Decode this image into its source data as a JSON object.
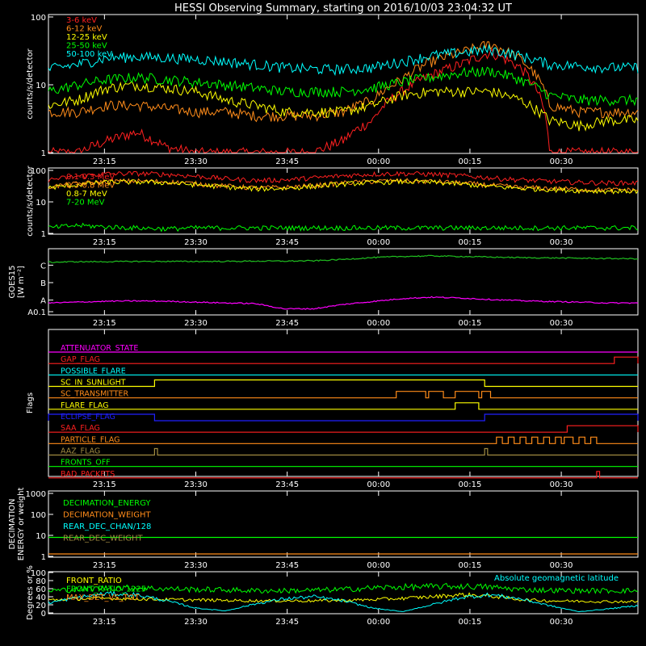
{
  "title": "HESSI Observing Summary, starting on 2016/10/03 23:04:32 UT",
  "time_ticks": [
    "23:15",
    "23:30",
    "23:45",
    "00:00",
    "00:15",
    "00:30"
  ],
  "colors": {
    "red": "#ff2020",
    "orange": "#ff8c1a",
    "yellow": "#ffff00",
    "green": "#00ff00",
    "cyan": "#00ffff",
    "magenta": "#ff00ff",
    "blue": "#2020ff",
    "darkgreen": "#20c020",
    "olive": "#a08a40"
  },
  "chart_data": [
    {
      "type": "line",
      "ylabel": "counts/s/detector",
      "scale": "log",
      "ylim": [
        1,
        100
      ],
      "y_ticks": [
        "1",
        "10",
        "100"
      ],
      "series": [
        {
          "name": "3-6 keV",
          "color": "#ff2020",
          "level_values": [
            1,
            1,
            1.5,
            2,
            1.2,
            1,
            1,
            1,
            1,
            1,
            1.5,
            3,
            8,
            14,
            20,
            30,
            18,
            1,
            1,
            1,
            1
          ]
        },
        {
          "name": "6-12 keV",
          "color": "#ff8c1a",
          "level_values": [
            4,
            4,
            5,
            5,
            4.5,
            4,
            4,
            3.5,
            3.5,
            3.5,
            4,
            6,
            12,
            22,
            30,
            40,
            24,
            5,
            4,
            4,
            4
          ]
        },
        {
          "name": "12-25 keV",
          "color": "#ffff00",
          "level_values": [
            5,
            6,
            9,
            10,
            9,
            8,
            6,
            5,
            4,
            4,
            4,
            5,
            7,
            8,
            8,
            8,
            6,
            3,
            2.5,
            3,
            3
          ]
        },
        {
          "name": "25-50 keV",
          "color": "#00ff00",
          "level_values": [
            8,
            10,
            12,
            13,
            12,
            11,
            10,
            9,
            8,
            8,
            8,
            9,
            11,
            13,
            15,
            16,
            12,
            7,
            6,
            6,
            6
          ]
        },
        {
          "name": "50-100 keV",
          "color": "#00ffff",
          "level_values": [
            17,
            20,
            25,
            26,
            25,
            24,
            22,
            20,
            18,
            17,
            17,
            18,
            22,
            27,
            30,
            33,
            27,
            20,
            19,
            18,
            18
          ]
        }
      ]
    },
    {
      "type": "line",
      "ylabel": "counts/s/detector",
      "scale": "log",
      "ylim": [
        1,
        100
      ],
      "y_ticks": [
        "1",
        "10",
        "100"
      ],
      "series": [
        {
          "name": "0.1-0.3 MeV",
          "color": "#ff2020",
          "level_values": [
            50,
            65,
            78,
            80,
            75,
            65,
            55,
            48,
            50,
            58,
            68,
            76,
            80,
            76,
            68,
            58,
            50,
            45,
            42,
            40,
            40
          ]
        },
        {
          "name": "0.3-0.8 MeV",
          "color": "#ff8c1a",
          "level_values": [
            30,
            38,
            45,
            46,
            44,
            38,
            32,
            28,
            29,
            33,
            40,
            45,
            47,
            45,
            40,
            34,
            29,
            27,
            25,
            24,
            24
          ]
        },
        {
          "name": "0.8-7 MeV",
          "color": "#ffff00",
          "level_values": [
            28,
            35,
            42,
            43,
            41,
            35,
            30,
            26,
            27,
            31,
            37,
            42,
            44,
            42,
            37,
            31,
            27,
            25,
            23,
            22,
            22
          ]
        },
        {
          "name": "7-20 MeV",
          "color": "#00ff00",
          "level_values": [
            1.5,
            1.8,
            1.6,
            1.5,
            1.4,
            1.5,
            1.5,
            1.5,
            1.5,
            1.5,
            1.5,
            1.5,
            1.5,
            1.5,
            1.5,
            1.5,
            1.5,
            1.5,
            1.5,
            1.5,
            1.5
          ]
        }
      ]
    },
    {
      "type": "line",
      "ylabel": "GOES15",
      "ylabel2": "[W m⁻²]",
      "y_ticks": [
        "A0.1",
        "A",
        "B",
        "C"
      ],
      "series": [
        {
          "name": "",
          "color": "#20c020",
          "level_values": [
            1.7,
            1.72,
            1.72,
            1.73,
            1.73,
            1.73,
            1.73,
            1.74,
            1.74,
            1.75,
            1.8,
            1.86,
            1.9,
            1.92,
            1.9,
            1.88,
            1.86,
            1.85,
            1.84,
            1.83,
            1.82
          ]
        },
        {
          "name": "",
          "color": "#ff00ff",
          "level_values": [
            0.3,
            0.33,
            0.36,
            0.37,
            0.36,
            0.33,
            0.3,
            0.28,
            0.1,
            0.1,
            0.25,
            0.35,
            0.45,
            0.5,
            0.47,
            0.42,
            0.38,
            0.35,
            0.33,
            0.3,
            0.3
          ]
        }
      ]
    },
    {
      "type": "line",
      "ylabel": "Flags",
      "series": [
        {
          "name": "ATTENUATOR_STATE",
          "color": "#ff00ff",
          "on_intervals": []
        },
        {
          "name": "GAP_FLAG",
          "color": "#ff2020",
          "on_intervals": [
            [
              0.96,
              1.0
            ]
          ]
        },
        {
          "name": "POSSIBLE_FLARE",
          "color": "#00ffff",
          "on_intervals": []
        },
        {
          "name": "SC_IN_SUNLIGHT",
          "color": "#ffff00",
          "on_intervals": [
            [
              0.18,
              0.74
            ]
          ]
        },
        {
          "name": "SC_TRANSMITTER",
          "color": "#ff8c1a",
          "on_intervals": [
            [
              0.59,
              0.64
            ],
            [
              0.645,
              0.67
            ],
            [
              0.69,
              0.73
            ],
            [
              0.735,
              0.75
            ]
          ]
        },
        {
          "name": "FLARE_FLAG",
          "color": "#ffff00",
          "on_intervals": [
            [
              0.69,
              0.73
            ]
          ]
        },
        {
          "name": "ECLIPSE_FLAG",
          "color": "#2020ff",
          "on_intervals": [
            [
              0.0,
              0.18
            ],
            [
              0.74,
              1.0
            ]
          ]
        },
        {
          "name": "SAA_FLAG",
          "color": "#ff2020",
          "on_intervals": [
            [
              0.88,
              1.0
            ]
          ]
        },
        {
          "name": "PARTICLE_FLAG",
          "color": "#ff8c1a",
          "on_intervals": [
            [
              0.76,
              0.77
            ],
            [
              0.78,
              0.79
            ],
            [
              0.8,
              0.81
            ],
            [
              0.82,
              0.83
            ],
            [
              0.84,
              0.85
            ],
            [
              0.86,
              0.87
            ],
            [
              0.875,
              0.89
            ],
            [
              0.9,
              0.91
            ],
            [
              0.92,
              0.93
            ]
          ]
        },
        {
          "name": "AAZ_FLAG",
          "color": "#a08a40",
          "on_intervals": [
            [
              0.18,
              0.185
            ],
            [
              0.74,
              0.745
            ]
          ]
        },
        {
          "name": "FRONTS_OFF",
          "color": "#00ff00",
          "on_intervals": []
        },
        {
          "name": "BAD_PACKETS",
          "color": "#ff2020",
          "on_intervals": [
            [
              0.93,
              0.935
            ]
          ]
        }
      ]
    },
    {
      "type": "line",
      "ylabel": "DECIMATION",
      "ylabel2": "ENERGY or weight",
      "scale": "log",
      "ylim": [
        1,
        1000
      ],
      "y_ticks": [
        "1",
        "10",
        "100",
        "1000"
      ],
      "series": [
        {
          "name": "DECIMATION_ENERGY",
          "color": "#00ff00",
          "level_values": [
            8
          ]
        },
        {
          "name": "DECIMATION_WEIGHT",
          "color": "#ff8c1a",
          "level_values": [
            1.3
          ]
        },
        {
          "name": "REAR_DEC_CHAN/128",
          "color": "#00ffff",
          "level_values": []
        },
        {
          "name": "REAR_DEC_WEIGHT",
          "color": "#a08a40",
          "level_values": []
        }
      ]
    },
    {
      "type": "line",
      "ylabel": "Degrees or %",
      "ylim": [
        0,
        100
      ],
      "y_ticks": [
        "0",
        "20",
        "40",
        "60",
        "80",
        "100"
      ],
      "annotation": "Absolute geomagnetic latitude",
      "series": [
        {
          "name": "FRONT_RATIO",
          "color": "#ffff00",
          "level_values": [
            32,
            35,
            36,
            35,
            33,
            32,
            31,
            30,
            30,
            30,
            31,
            33,
            36,
            40,
            45,
            42,
            33,
            30,
            29,
            28,
            28
          ]
        },
        {
          "name": "FRONT_RATIO_1225",
          "color": "#00ff00",
          "level_values": [
            55,
            58,
            62,
            62,
            60,
            58,
            57,
            55,
            55,
            56,
            58,
            62,
            64,
            65,
            66,
            64,
            58,
            56,
            55,
            55,
            55
          ]
        },
        {
          "name": "MAX_DET_VS_TOT",
          "color": "#ff8c1a",
          "level_values": []
        },
        {
          "name": "",
          "color": "#00ffff",
          "level_values": [
            25,
            38,
            48,
            45,
            30,
            12,
            5,
            22,
            35,
            40,
            30,
            12,
            3,
            20,
            38,
            45,
            35,
            18,
            3,
            10,
            18
          ]
        }
      ]
    }
  ]
}
